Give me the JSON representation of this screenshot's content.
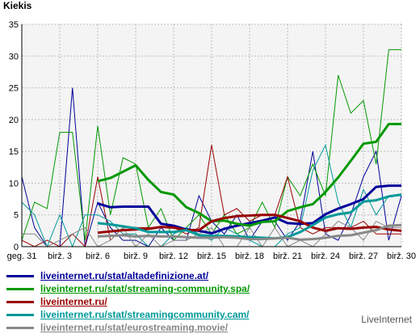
{
  "chart_data": {
    "type": "line",
    "title": "Kiekis",
    "ylim": [
      0,
      35
    ],
    "yticks": [
      0,
      5,
      10,
      15,
      20,
      25,
      30,
      35
    ],
    "x": [
      31,
      1,
      2,
      3,
      4,
      5,
      6,
      7,
      8,
      9,
      10,
      11,
      12,
      13,
      14,
      15,
      16,
      17,
      18,
      19,
      20,
      21,
      22,
      23,
      24,
      25,
      26,
      27,
      28,
      29,
      30
    ],
    "xtick_labels": [
      "geg. 31",
      "birž. 3",
      "birž. 6",
      "birž. 9",
      "birž. 12",
      "birž. 15",
      "birž. 18",
      "birž. 21",
      "birž. 24",
      "birž. 27",
      "birž. 30"
    ],
    "grid": true,
    "series": [
      {
        "name": "liveinternet.ru/stat/altadefinizione.at/",
        "color": "#000099",
        "values": [
          11,
          3,
          0,
          0,
          25,
          0,
          7,
          3,
          1,
          1,
          0,
          3,
          1,
          1,
          8,
          4,
          2,
          5,
          1,
          4,
          4,
          1,
          4,
          15,
          2,
          1,
          5,
          11,
          15,
          1,
          8
        ],
        "avg": [
          null,
          null,
          null,
          null,
          null,
          null,
          6.8,
          6.2,
          6.3,
          6.3,
          6.3,
          3.6,
          3.3,
          2.7,
          2.5,
          2.1,
          2.8,
          3.3,
          3.7,
          4.1,
          4.6,
          3.7,
          3.6,
          3.7,
          5.1,
          6.0,
          6.7,
          7.5,
          9.4,
          9.6,
          9.6
        ]
      },
      {
        "name": "liveinternet.ru/stat/streaming-community.spa/",
        "color": "#009900",
        "values": [
          1,
          7,
          6,
          18,
          18,
          1,
          19,
          5,
          14,
          13,
          3,
          6,
          1,
          3,
          5,
          2,
          5,
          2,
          3,
          7,
          3,
          11,
          8,
          13,
          8,
          27,
          21,
          23,
          13,
          31,
          31
        ],
        "avg": [
          null,
          null,
          null,
          null,
          null,
          null,
          10.3,
          10.8,
          11.8,
          12.8,
          10.5,
          8.6,
          8.2,
          6.2,
          5.3,
          4.0,
          4.1,
          3.6,
          3.3,
          3.9,
          4.0,
          5.6,
          6.2,
          6.7,
          8.6,
          10.9,
          13.5,
          16.2,
          16.5,
          19.3,
          19.3
        ]
      },
      {
        "name": "liveinternet.ru/",
        "color": "#990000",
        "values": [
          1,
          0,
          1,
          0,
          2,
          0,
          11,
          1,
          3,
          3,
          3,
          3,
          3,
          2,
          3,
          16,
          5,
          6,
          4,
          5,
          5,
          11,
          3,
          2,
          3,
          3,
          3,
          4,
          2,
          2,
          2
        ],
        "avg": [
          null,
          null,
          null,
          null,
          null,
          null,
          2.2,
          2.4,
          2.6,
          2.7,
          2.8,
          3.1,
          3.0,
          2.6,
          2.6,
          4.0,
          4.5,
          4.8,
          4.9,
          5.0,
          5.0,
          4.5,
          4.0,
          3.0,
          2.5,
          2.9,
          2.8,
          3.0,
          3.1,
          2.7,
          2.5
        ]
      },
      {
        "name": "liveinternet.ru/stat/streamingcommunity.cam/",
        "color": "#009999",
        "values": [
          7,
          5,
          0,
          5,
          0,
          5,
          5,
          4,
          2,
          2,
          0,
          0,
          2,
          3,
          2,
          1,
          3,
          2,
          1,
          0,
          0,
          2,
          3,
          12,
          16,
          7,
          3,
          9,
          5,
          8,
          8
        ],
        "avg": [
          null,
          null,
          null,
          null,
          null,
          null,
          3.7,
          3.5,
          3.2,
          2.9,
          2.3,
          2.3,
          2.3,
          2.6,
          1.8,
          1.7,
          1.7,
          1.6,
          1.5,
          1.4,
          1.3,
          1.5,
          2.3,
          3.4,
          4.6,
          5.1,
          5.4,
          7.1,
          7.3,
          7.9,
          8.2
        ]
      },
      {
        "name": "liveinternet.ru/stat/eurostreaming.movie/",
        "color": "#888888",
        "values": [
          2,
          2,
          0,
          1,
          2,
          3,
          0,
          1,
          3,
          0,
          2,
          0,
          1,
          1,
          2,
          3,
          0,
          0,
          3,
          0,
          3,
          0,
          1,
          0,
          2,
          4,
          3,
          1,
          4,
          3,
          3
        ],
        "avg": [
          null,
          null,
          null,
          null,
          null,
          null,
          1.6,
          1.7,
          1.8,
          1.6,
          1.7,
          1.6,
          1.6,
          1.5,
          1.4,
          1.4,
          1.5,
          1.4,
          1.2,
          1.2,
          1.3,
          1.4,
          1.1,
          1.2,
          1.4,
          1.7,
          1.8,
          2.2,
          2.6,
          3.3,
          3.4
        ]
      }
    ]
  },
  "brand": "LiveInternet"
}
